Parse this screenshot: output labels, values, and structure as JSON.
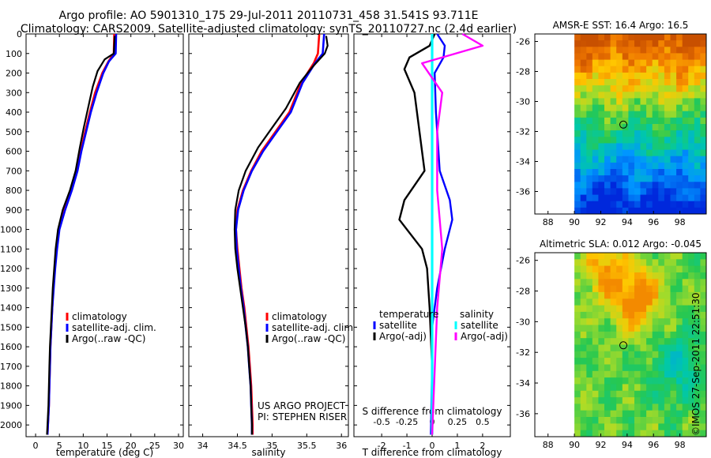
{
  "header": {
    "title_line1": "Argo profile: AO 5901310_175 29-Jul-2011 20110731_458 31.541S 93.711E",
    "title_line2": "Climatology: CARS2009. Satellite-adjusted climatology: synTS_20110727.nc (2.4d earlier)"
  },
  "footer": {
    "stamp": "©IMOS 27-Sep-2011 22:51:30",
    "project_line1": "US ARGO PROJECT",
    "project_line2": "PI: STEPHEN RISER"
  },
  "colors": {
    "climatology": "#ff0000",
    "satellite": "#0000ff",
    "argo": "#000000",
    "salinity_satellite": "#00ffff",
    "salinity_argo": "#ff00ff"
  },
  "chart_data": [
    {
      "type": "line",
      "xlabel": "temperature (deg C)",
      "xlim": [
        -2,
        31
      ],
      "ylim": [
        2060,
        0
      ],
      "x_ticks": [
        0,
        5,
        10,
        15,
        20,
        25,
        30
      ],
      "y_ticks": [
        0,
        100,
        200,
        300,
        400,
        500,
        600,
        700,
        800,
        900,
        1000,
        1100,
        1200,
        1300,
        1400,
        1500,
        1600,
        1700,
        1800,
        1900,
        2000
      ],
      "series": [
        {
          "name": "climatology",
          "color": "#ff0000",
          "points": [
            [
              16.5,
              0
            ],
            [
              16.4,
              100
            ],
            [
              15.3,
              140
            ],
            [
              14,
              200
            ],
            [
              12.5,
              300
            ],
            [
              11.4,
              400
            ],
            [
              10.4,
              500
            ],
            [
              9.5,
              600
            ],
            [
              8.7,
              700
            ],
            [
              7.4,
              800
            ],
            [
              6,
              900
            ],
            [
              4.9,
              1000
            ],
            [
              4.4,
              1100
            ],
            [
              4,
              1200
            ],
            [
              3.7,
              1300
            ],
            [
              3.5,
              1400
            ],
            [
              3.3,
              1500
            ],
            [
              3.1,
              1600
            ],
            [
              3,
              1700
            ],
            [
              2.9,
              1800
            ],
            [
              2.8,
              1900
            ],
            [
              2.6,
              2000
            ],
            [
              2.5,
              2050
            ]
          ]
        },
        {
          "name": "satellite-adj. clim.",
          "color": "#0000ff",
          "points": [
            [
              16.9,
              0
            ],
            [
              16.8,
              100
            ],
            [
              15.4,
              140
            ],
            [
              14.2,
              200
            ],
            [
              12.8,
              300
            ],
            [
              11.6,
              400
            ],
            [
              10.6,
              500
            ],
            [
              9.6,
              600
            ],
            [
              8.8,
              700
            ],
            [
              7.6,
              800
            ],
            [
              6.2,
              900
            ],
            [
              5,
              1000
            ],
            [
              4.5,
              1100
            ],
            [
              4.1,
              1200
            ],
            [
              3.8,
              1300
            ],
            [
              3.5,
              1400
            ],
            [
              3.3,
              1500
            ],
            [
              3.1,
              1600
            ],
            [
              3,
              1700
            ],
            [
              2.9,
              1800
            ],
            [
              2.8,
              1900
            ],
            [
              2.6,
              2000
            ],
            [
              2.5,
              2050
            ]
          ]
        },
        {
          "name": "Argo(..raw -QC)",
          "color": "#000000",
          "points": [
            [
              16.6,
              10
            ],
            [
              16.4,
              100
            ],
            [
              14.5,
              130
            ],
            [
              13,
              190
            ],
            [
              12,
              270
            ],
            [
              11,
              380
            ],
            [
              10.1,
              480
            ],
            [
              9.3,
              580
            ],
            [
              8.4,
              700
            ],
            [
              7.2,
              800
            ],
            [
              5.7,
              900
            ],
            [
              4.7,
              1000
            ],
            [
              4.2,
              1100
            ],
            [
              3.9,
              1200
            ],
            [
              3.6,
              1300
            ],
            [
              3.4,
              1400
            ],
            [
              3.2,
              1500
            ],
            [
              3,
              1600
            ],
            [
              2.9,
              1700
            ],
            [
              2.8,
              1800
            ],
            [
              2.7,
              1900
            ],
            [
              2.5,
              2000
            ],
            [
              2.4,
              2050
            ]
          ]
        }
      ],
      "legend": [
        "climatology",
        "satellite-adj. clim.",
        "Argo(..raw -QC)"
      ],
      "legend_placement": "lower-left",
      "grid": false
    },
    {
      "type": "line",
      "xlabel": "salinity",
      "xlim": [
        33.8,
        36.1
      ],
      "ylim": [
        2060,
        0
      ],
      "x_ticks": [
        34,
        34.5,
        35,
        35.5,
        36
      ],
      "x_tick_labels": [
        "34",
        "34.5",
        "35",
        "35.5",
        "36"
      ],
      "series": [
        {
          "name": "climatology",
          "color": "#ff0000",
          "points": [
            [
              35.68,
              0
            ],
            [
              35.66,
              100
            ],
            [
              35.6,
              150
            ],
            [
              35.42,
              250
            ],
            [
              35.25,
              400
            ],
            [
              35.05,
              500
            ],
            [
              34.85,
              600
            ],
            [
              34.7,
              700
            ],
            [
              34.58,
              800
            ],
            [
              34.5,
              900
            ],
            [
              34.48,
              1000
            ],
            [
              34.5,
              1100
            ],
            [
              34.53,
              1200
            ],
            [
              34.56,
              1300
            ],
            [
              34.6,
              1400
            ],
            [
              34.63,
              1500
            ],
            [
              34.66,
              1600
            ],
            [
              34.68,
              1700
            ],
            [
              34.7,
              1800
            ],
            [
              34.71,
              1900
            ],
            [
              34.72,
              2000
            ],
            [
              34.72,
              2050
            ]
          ]
        },
        {
          "name": "satellite-adj. clim.",
          "color": "#0000ff",
          "points": [
            [
              35.75,
              0
            ],
            [
              35.73,
              100
            ],
            [
              35.62,
              150
            ],
            [
              35.44,
              250
            ],
            [
              35.27,
              400
            ],
            [
              35.07,
              500
            ],
            [
              34.87,
              600
            ],
            [
              34.71,
              700
            ],
            [
              34.59,
              800
            ],
            [
              34.51,
              900
            ],
            [
              34.48,
              1000
            ],
            [
              34.49,
              1100
            ],
            [
              34.52,
              1200
            ],
            [
              34.55,
              1300
            ],
            [
              34.59,
              1400
            ],
            [
              34.62,
              1500
            ],
            [
              34.65,
              1600
            ],
            [
              34.67,
              1700
            ],
            [
              34.69,
              1800
            ],
            [
              34.7,
              1900
            ],
            [
              34.71,
              2000
            ],
            [
              34.71,
              2050
            ]
          ]
        },
        {
          "name": "Argo(..raw -QC)",
          "color": "#000000",
          "points": [
            [
              35.78,
              10
            ],
            [
              35.8,
              60
            ],
            [
              35.76,
              100
            ],
            [
              35.58,
              170
            ],
            [
              35.4,
              250
            ],
            [
              35.2,
              380
            ],
            [
              35,
              480
            ],
            [
              34.8,
              580
            ],
            [
              34.62,
              700
            ],
            [
              34.52,
              800
            ],
            [
              34.47,
              900
            ],
            [
              34.46,
              1000
            ],
            [
              34.47,
              1100
            ],
            [
              34.5,
              1200
            ],
            [
              34.54,
              1300
            ],
            [
              34.58,
              1400
            ],
            [
              34.62,
              1500
            ],
            [
              34.65,
              1600
            ],
            [
              34.67,
              1700
            ],
            [
              34.69,
              1800
            ],
            [
              34.7,
              1900
            ],
            [
              34.71,
              2000
            ],
            [
              34.71,
              2050
            ]
          ]
        }
      ],
      "legend": [
        "climatology",
        "satellite-adj. clim.",
        "Argo(..raw -QC)"
      ],
      "legend_placement": "lower-right",
      "grid": false
    },
    {
      "type": "line",
      "xlabel": "T difference from climatology",
      "top_xlabel": "S difference from climatology",
      "xlim": [
        -3.1,
        3.1
      ],
      "ylim": [
        2060,
        0
      ],
      "x_ticks": [
        -2,
        -1,
        0,
        1,
        2
      ],
      "top_x_ticks": [
        -0.5,
        -0.25,
        0,
        0.25,
        0.5
      ],
      "top_x_tick_labels": [
        "-0.5",
        "-0.25",
        "0",
        "0.25",
        "0.5"
      ],
      "series": [
        {
          "name": "satellite",
          "group": "temperature",
          "color": "#0000ff",
          "points": [
            [
              0.2,
              0
            ],
            [
              0.5,
              60
            ],
            [
              0.45,
              120
            ],
            [
              0.1,
              200
            ],
            [
              0.15,
              400
            ],
            [
              0.3,
              700
            ],
            [
              0.7,
              850
            ],
            [
              0.8,
              950
            ],
            [
              0.5,
              1100
            ],
            [
              0.2,
              1300
            ],
            [
              0,
              1500
            ],
            [
              0,
              1700
            ],
            [
              -0.05,
              2050
            ]
          ]
        },
        {
          "name": "Argo(-adj)",
          "group": "temperature",
          "color": "#000000",
          "points": [
            [
              0.1,
              0
            ],
            [
              -0.1,
              60
            ],
            [
              -0.9,
              120
            ],
            [
              -1.1,
              180
            ],
            [
              -0.7,
              300
            ],
            [
              -0.5,
              500
            ],
            [
              -0.3,
              700
            ],
            [
              -1.1,
              850
            ],
            [
              -1.3,
              950
            ],
            [
              -0.4,
              1100
            ],
            [
              -0.2,
              1200
            ],
            [
              -0.1,
              1400
            ],
            [
              0,
              1700
            ],
            [
              0,
              2050
            ]
          ]
        },
        {
          "name": "satellite",
          "group": "salinity",
          "color": "#00ffff",
          "points": [
            [
              0,
              0
            ],
            [
              0,
              100
            ],
            [
              0,
              500
            ],
            [
              0,
              1000
            ],
            [
              0,
              1500
            ],
            [
              0,
              2050
            ]
          ]
        },
        {
          "name": "Argo(-adj)",
          "group": "salinity",
          "color": "#ff00ff",
          "points": [
            [
              0.3,
              0
            ],
            [
              0.5,
              60
            ],
            [
              -0.1,
              150
            ],
            [
              0.1,
              300
            ],
            [
              0.05,
              500
            ],
            [
              0.05,
              800
            ],
            [
              0.1,
              1100
            ],
            [
              0.05,
              1400
            ],
            [
              0,
              2050
            ]
          ]
        }
      ],
      "legend_groups": [
        {
          "title": "temperature",
          "items": [
            "satellite",
            "Argo(-adj)"
          ]
        },
        {
          "title": "salinity",
          "items": [
            "satellite",
            "Argo(-adj)"
          ]
        }
      ],
      "grid": false
    },
    {
      "type": "heatmap",
      "title": "AMSR-E SST: 16.4  Argo: 16.5",
      "xlim": [
        87,
        100
      ],
      "ylim": [
        -37.5,
        -25.5
      ],
      "x_ticks": [
        88,
        90,
        92,
        94,
        96,
        98
      ],
      "y_ticks": [
        -26,
        -28,
        -30,
        -32,
        -34,
        -36
      ],
      "data_xlim": [
        90,
        100
      ],
      "marker": {
        "lon": 93.711,
        "lat": -31.541
      }
    },
    {
      "type": "heatmap",
      "title": "Altimetric SLA: 0.012  Argo: -0.045",
      "xlim": [
        87,
        100
      ],
      "ylim": [
        -37.5,
        -25.5
      ],
      "x_ticks": [
        88,
        90,
        92,
        94,
        96,
        98
      ],
      "y_ticks": [
        -26,
        -28,
        -30,
        -32,
        -34,
        -36
      ],
      "data_xlim": [
        90,
        100
      ],
      "marker": {
        "lon": 93.711,
        "lat": -31.541
      }
    }
  ]
}
